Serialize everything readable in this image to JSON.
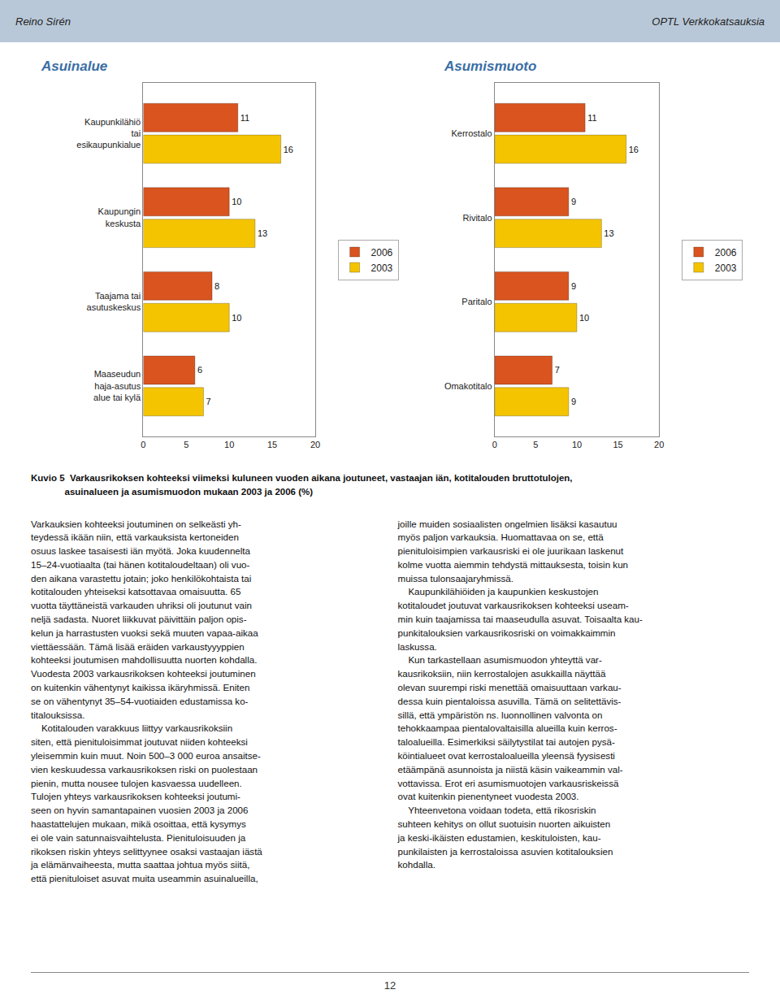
{
  "header_left": "Reino Sirén",
  "header_right": "OPTL Verkkokatsauksia",
  "caption": "Kuvio 5  Varkausrikoksen kohteeksi viimeksi kuluneen vuoden aikana joutuneet, vastaajan iän, kotitalouden bruttotulojen,\n             asuinalueen ja asumismuodon mukaan 2003 ja 2006 (%)",
  "body_left": "Varkauksien kohteeksi joutuminen on selkeästi yh-\nteydessä ikään niin, että varkauksista kertoneiden\nosuus laskee tasaisesti iän myötä. Joka kuudennelta\n15–24-vuotiaalta (tai hänen kotitaloudeltaan) oli vuo-\nden aikana varastettu jotain; joko henkilökohtaista tai\nkotitalouden yhteiseksi katsottavaa omaisuutta. 65\nvuotta täyttäneistä varkauden uhriksi oli joutunut vain\nneljä sadasta. Nuoret liikkuvat päivittäin paljon opis-\nkelun ja harrastusten vuoksi sekä muuten vapaa-aikaa\nviettäessään. Tämä lisää eräiden varkaustyyyppien\nkohteeksi joutumisen mahdollisuutta nuorten kohdalla.\nVuodesta 2003 varkausrikoksen kohteeksi joutuminen\non kuitenkin vähentynyt kaikissa ikäryhmissä. Eniten\nse on vähentynyt 35–54-vuotiaiden edustamissa ko-\ntitalouksissa.\n    Kotitalouden varakkuus liittyy varkausrikoksiin\nsiten, että pienituloisimmat joutuvat niiden kohteeksi\nyleisemmin kuin muut. Noin 500–3 000 euroa ansaitse-\nvien keskuudessa varkausrikoksen riski on puolestaan\npienin, mutta nousee tulojen kasvaessa uudelleen.\nTulojen yhteys varkausrikoksen kohteeksi joutumi-\nseen on hyvin samantapainen vuosien 2003 ja 2006\nhaastattelujen mukaan, mikä osoittaa, että kysymys\nei ole vain satunnaisvaihtelusta. Pienituloisuuden ja\nrikoksen riskin yhteys selittyynee osaksi vastaajan iästä\nja elämänvaiheesta, mutta saattaa johtua myös siitä,\nettä pienituloiset asuvat muita useammin asuinalueilla,",
  "body_right": "joille muiden sosiaalisten ongelmien lisäksi kasautuu\nmyös paljon varkauksia. Huomattavaa on se, että\npienituloisimpien varkausriski ei ole juurikaan laskenut\nkolme vuotta aiemmin tehdystä mittauksesta, toisin kun\nmuissa tulonsaajaryhmissä.\n    Kaupunkilähiöiden ja kaupunkien keskustojen\nkotitaloudet joutuvat varkausrikoksen kohteeksi useam-\nmin kuin taajamissa tai maaseudulla asuvat. Toisaalta kau-\npunkitalouksien varkausrikosriski on voimakkaimmin\nlaskussa.\n    Kun tarkastellaan asumismuodon yhteyttä var-\nkausrikoksiin, niin kerrostalojen asukkailla näyttää\nolevan suurempi riski menettää omaisuuttaan varkau-\ndessa kuin pientaloissa asuvilla. Tämä on selitettävis-\nsillä, että ympäristön ns. luonnollinen valvonta on\ntehokkaampaa pientalovaltaisilla alueilla kuin kerros-\ntaloalueilla. Esimerkiksi säilytystilat tai autojen pysä-\nköintialueet ovat kerrostaloalueilla yleensä fyysisesti\netäämpänä asunnoista ja niistä käsin vaikeammin val-\nvottavissa. Erot eri asumismuotojen varkausriskeissä\novat kuitenkin pienentyneet vuodesta 2003.\n    Yhteenvetona voidaan todeta, että rikosriskin\nsuhteen kehitys on ollut suotuisin nuorten aikuisten\nja keski-ikäisten edustamien, keskituloisten, kau-\npunkilaisten ja kerrostaloissa asuvien kotitalouksien\nkohdalla.",
  "page_number": "12",
  "chart_data": [
    {
      "type": "bar",
      "orientation": "horizontal",
      "title": "Asuinalue",
      "categories": [
        "Maaseudun\nhaja-asutus\nalue tai kylä",
        "Taajama tai\nasutuskeskus",
        "Kaupungin\nkeskusta",
        "Kaupunkilähiö\ntai\nesikaupunkialue"
      ],
      "series": [
        {
          "name": "2006",
          "color": "#d9541e",
          "values": [
            6,
            8,
            10,
            11
          ]
        },
        {
          "name": "2003",
          "color": "#f5c400",
          "values": [
            7,
            10,
            13,
            16
          ]
        }
      ],
      "xlim": [
        0,
        20
      ],
      "xticks": [
        0,
        5,
        10,
        15,
        20
      ],
      "grid": false,
      "legend": "right",
      "data_labels": true
    },
    {
      "type": "bar",
      "orientation": "horizontal",
      "title": "Asumismuoto",
      "categories": [
        "Omakotitalo",
        "Paritalo",
        "Rivitalo",
        "Kerrostalo"
      ],
      "series": [
        {
          "name": "2006",
          "color": "#d9541e",
          "values": [
            7,
            9,
            9,
            11
          ]
        },
        {
          "name": "2003",
          "color": "#f5c400",
          "values": [
            9,
            10,
            13,
            16
          ]
        }
      ],
      "xlim": [
        0,
        20
      ],
      "xticks": [
        0,
        5,
        10,
        15,
        20
      ],
      "grid": false,
      "legend": "right",
      "data_labels": true
    }
  ]
}
